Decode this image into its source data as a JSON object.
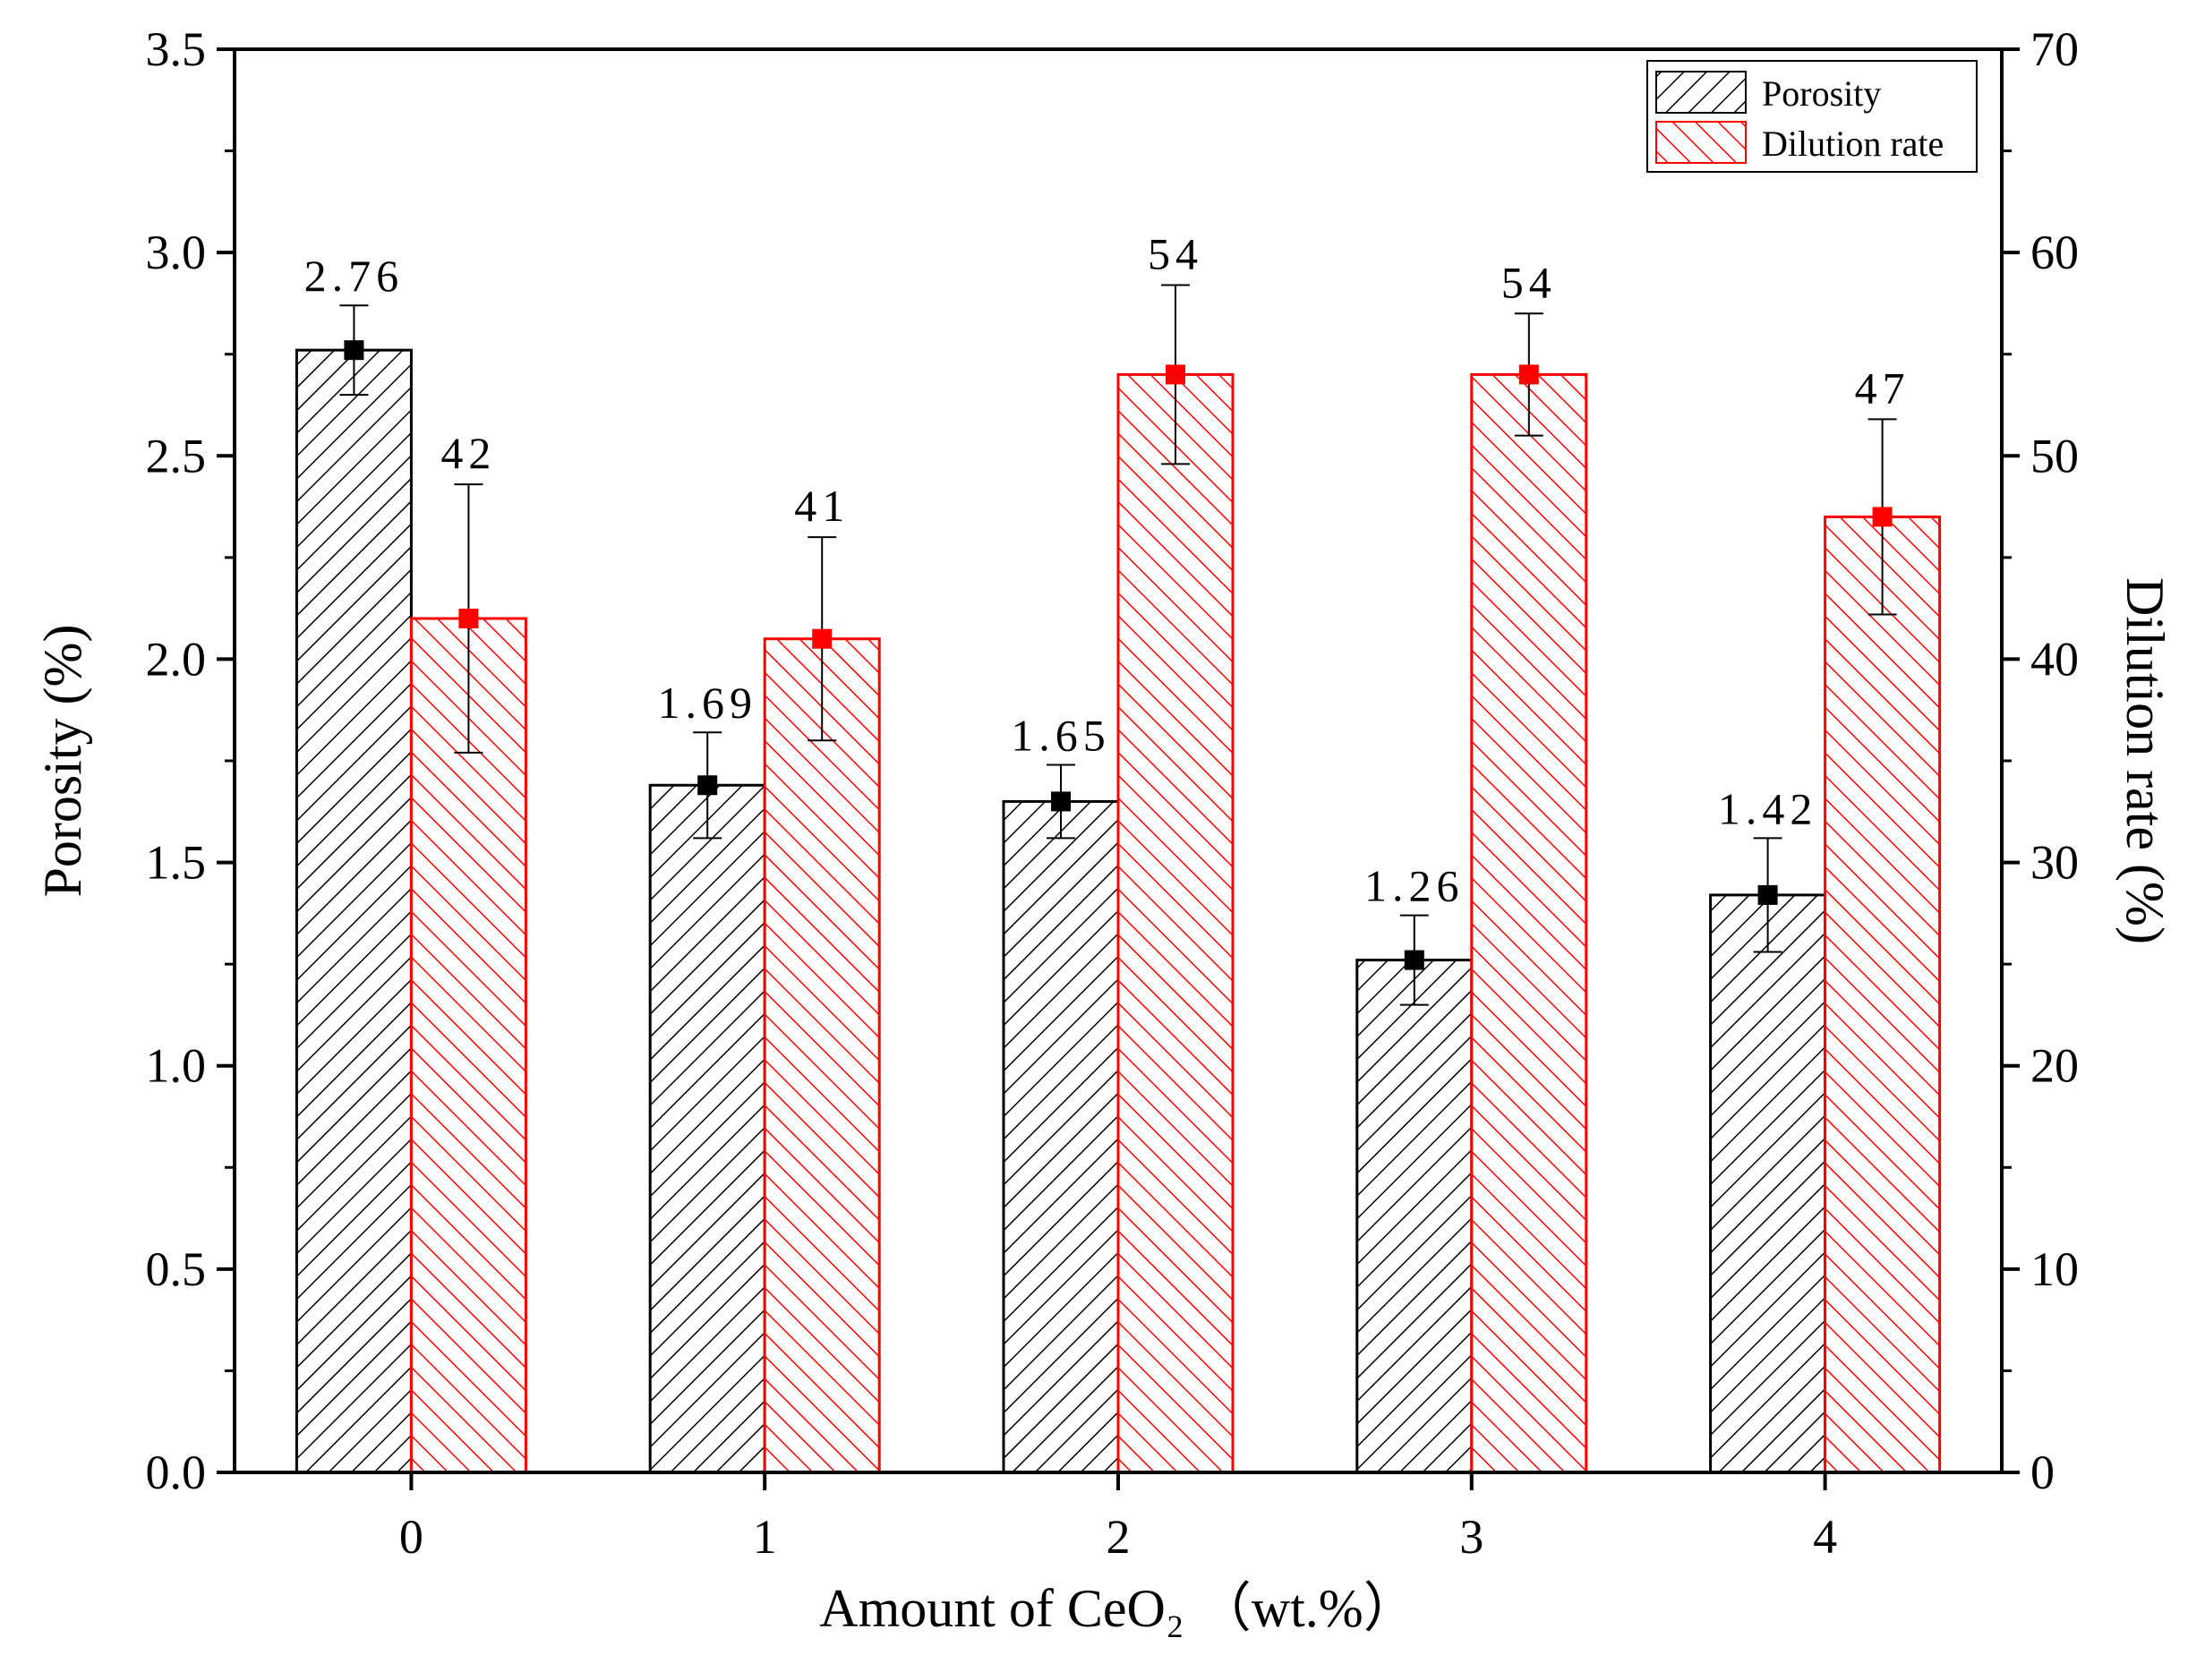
{
  "chart_data": {
    "type": "bar",
    "categories": [
      "0",
      "1",
      "2",
      "3",
      "4"
    ],
    "xlabel": "Amount of CeO₂ （wt.%）",
    "ylabel": "Porosity (%)",
    "y2label": "Dilution rate (%)",
    "ylim": [
      0,
      3.5
    ],
    "y2lim": [
      0,
      70
    ],
    "yticks": [
      "0.0",
      "0.5",
      "1.0",
      "1.5",
      "2.0",
      "2.5",
      "3.0",
      "3.5"
    ],
    "y2ticks": [
      "0",
      "10",
      "20",
      "30",
      "40",
      "50",
      "60",
      "70"
    ],
    "legend_position": "top-right",
    "series": [
      {
        "name": "Porosity",
        "axis": "left",
        "color": "#000000",
        "hatch": "forward-diagonal",
        "values": [
          2.76,
          1.69,
          1.65,
          1.26,
          1.42
        ],
        "errors": [
          0.11,
          0.13,
          0.09,
          0.11,
          0.14
        ],
        "labels": [
          "2.76",
          "1.69",
          "1.65",
          "1.26",
          "1.42"
        ]
      },
      {
        "name": "Dilution rate",
        "axis": "right",
        "color": "#ff0000",
        "hatch": "back-diagonal",
        "values": [
          42,
          41,
          54,
          54,
          47
        ],
        "errors": [
          6.6,
          5.0,
          4.4,
          3.0,
          4.8
        ],
        "labels": [
          "42",
          "41",
          "54",
          "54",
          "47"
        ]
      }
    ]
  }
}
